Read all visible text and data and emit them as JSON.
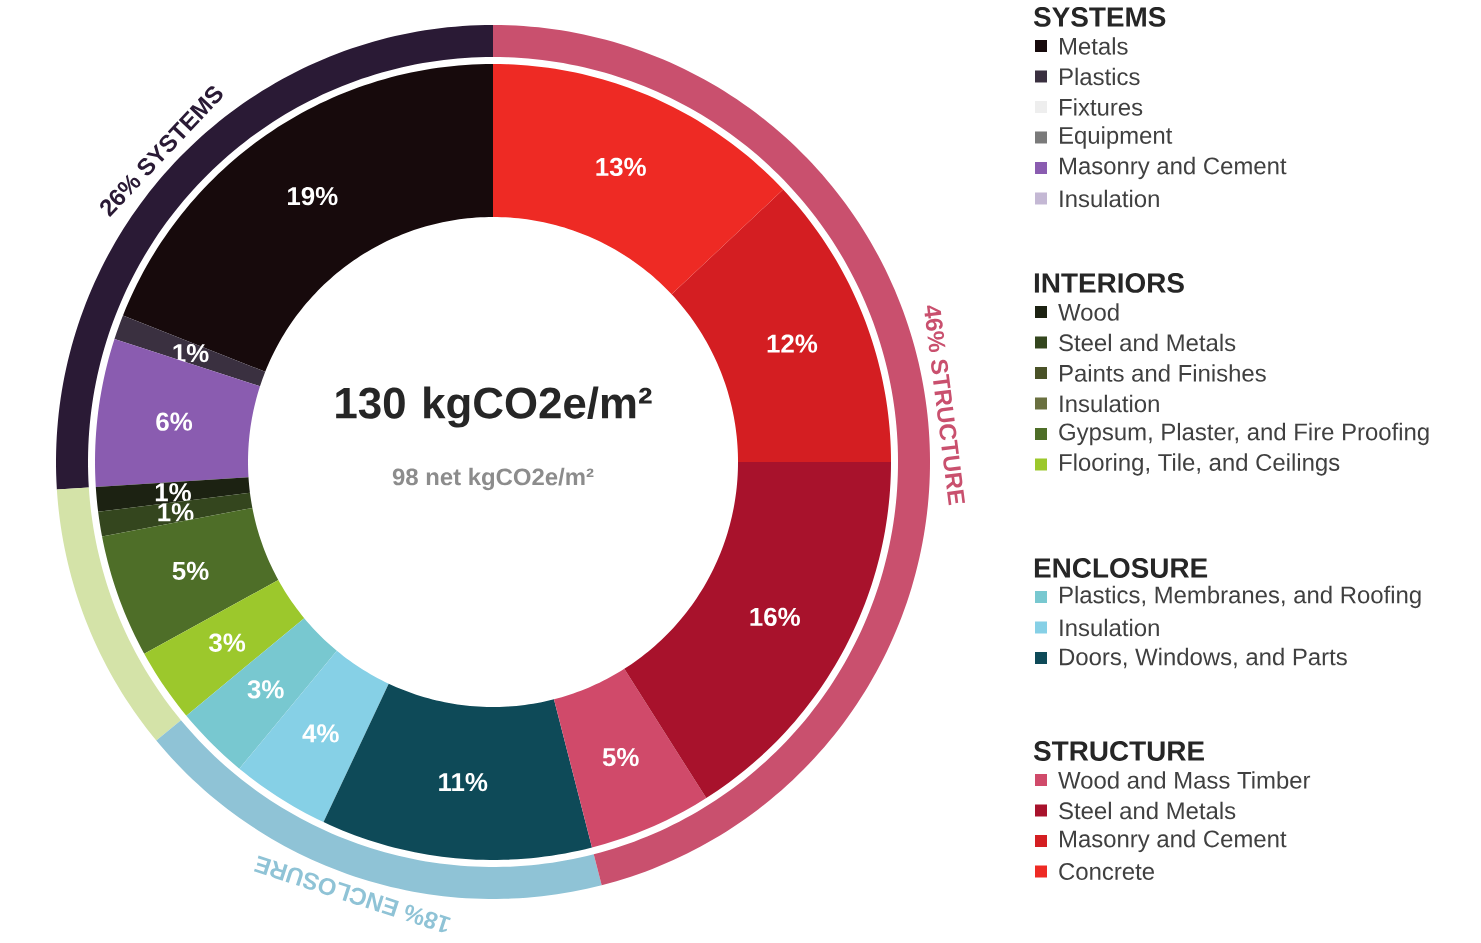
{
  "chart_data": [
    {
      "type": "donut",
      "title": "130 kgCO2e/m²",
      "subtitle": "98 net kgCO2e/m²",
      "legend": "right",
      "annotations": [
        "SYSTEMS",
        "INTERIORS",
        "ENCLOSURE",
        "STRUCTURE"
      ],
      "categories": [
        "Metals",
        "Plastics",
        "Fixtures",
        "Equipment",
        "Masonry and Cement",
        "Insulation",
        "Wood",
        "Steel and Metals",
        "Paints and Finishes",
        "Insulation",
        "Gypsum, Plaster, and Fire Proofing",
        "Flooring, Tile, and Ceilings",
        "Plastics, Membranes, and Roofing",
        "Insulation",
        "Doors, Windows, and Parts",
        "Wood and Mass Timber",
        "Steel and Metals",
        "Masonry and Cement",
        "Concrete"
      ],
      "values": [
        19,
        1,
        0,
        0,
        6,
        0,
        1,
        1,
        0,
        0,
        5,
        3,
        3,
        4,
        11,
        5,
        16,
        12,
        13
      ],
      "value_labels": [
        "19%",
        "1%",
        null,
        null,
        "6%",
        null,
        "1%",
        "1%",
        null,
        null,
        "5%",
        "3%",
        "3%",
        "4%",
        "11%",
        "5%",
        "16%",
        "12%",
        "13%"
      ],
      "colors": [
        "#170a0c",
        "#3a3040",
        "#eeeeee",
        "#7a7a7a",
        "#8a5cb0",
        "#c4b8d4",
        "#1c2212",
        "#34461e",
        "#4a5228",
        "#6a7040",
        "#4e6e28",
        "#9cc82c",
        "#78c8d0",
        "#86d0e6",
        "#0e4a58",
        "#d04a6a",
        "#a8122c",
        "#d41e22",
        "#ee2a24"
      ]
    },
    {
      "type": "donut",
      "categories": [
        "26% SYSTEMS",
        null,
        "18% ENCLOSURE",
        "46% STRUCTURE"
      ],
      "values": [
        26,
        10,
        18,
        46
      ],
      "colors": [
        "#2a1a35",
        "#d4e3a8",
        "#8fc3d6",
        "#c9506e"
      ]
    }
  ]
}
